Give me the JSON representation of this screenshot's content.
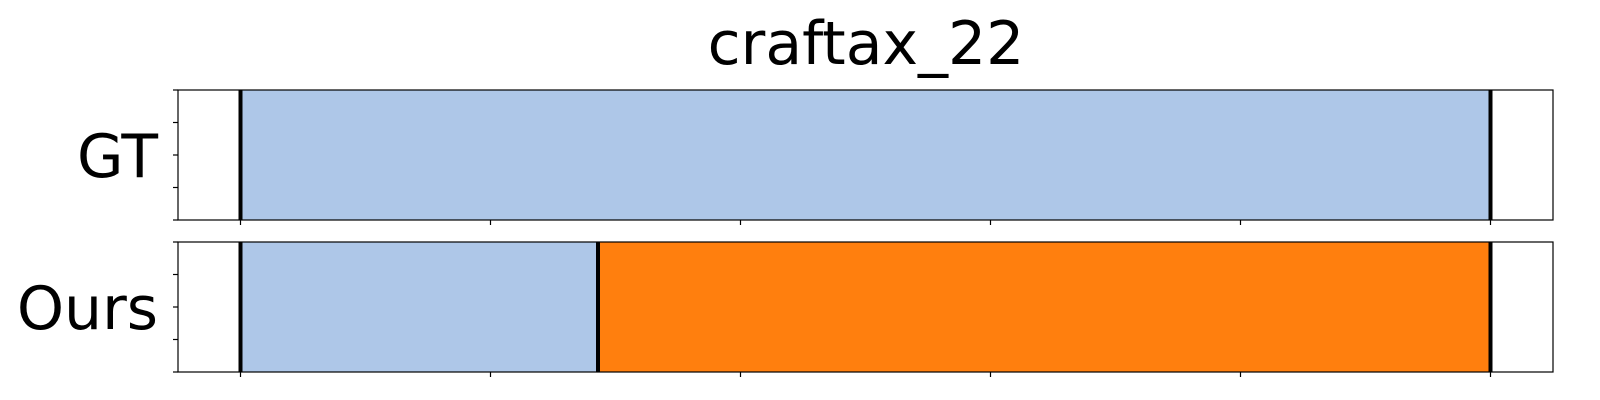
{
  "chart_data": {
    "type": "bar",
    "orientation": "horizontal-stacked-timeline",
    "title": "craftax_22",
    "xlim": [
      -0.05,
      1.05
    ],
    "grid": false,
    "legend": "none",
    "x_ticks": [
      0,
      0.2,
      0.4,
      0.6,
      0.8,
      1.0
    ],
    "rows": [
      {
        "label": "GT",
        "segments": [
          {
            "start": 0.0,
            "end": 1.0,
            "color": "#aec7e8"
          }
        ],
        "boundaries": [
          0.0,
          1.0
        ]
      },
      {
        "label": "Ours",
        "segments": [
          {
            "start": 0.0,
            "end": 0.286,
            "color": "#aec7e8"
          },
          {
            "start": 0.286,
            "end": 1.0,
            "color": "#ff7f0e"
          }
        ],
        "boundaries": [
          0.0,
          0.286,
          1.0
        ]
      }
    ]
  }
}
